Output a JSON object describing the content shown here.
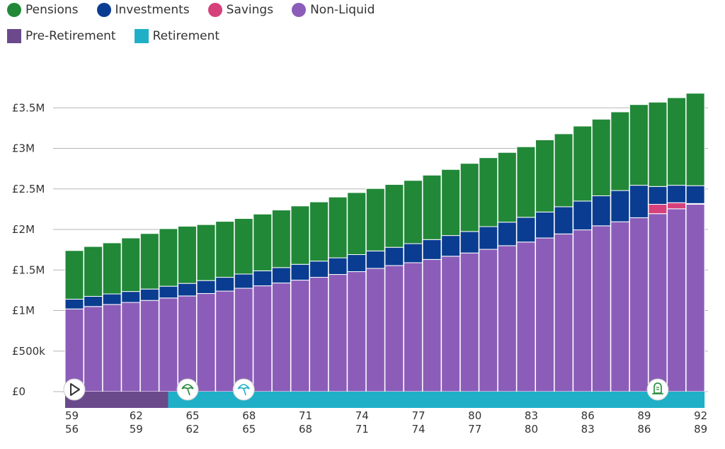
{
  "legend": {
    "assets": [
      {
        "label": "Pensions",
        "color": "#218838"
      },
      {
        "label": "Investments",
        "color": "#0a3d91"
      },
      {
        "label": "Savings",
        "color": "#d6417c"
      },
      {
        "label": "Non-Liquid",
        "color": "#8b5db8"
      }
    ],
    "phases": [
      {
        "label": "Pre-Retirement",
        "color": "#6b4a8c"
      },
      {
        "label": "Retirement",
        "color": "#1fb0c8"
      }
    ]
  },
  "chart_data": {
    "type": "bar",
    "stacked": true,
    "x_label_rows": [
      [
        "59",
        "62",
        "65",
        "68",
        "71",
        "74",
        "77",
        "80",
        "83",
        "86",
        "89",
        "92"
      ],
      [
        "56",
        "59",
        "62",
        "65",
        "68",
        "71",
        "74",
        "77",
        "80",
        "83",
        "86",
        "89"
      ]
    ],
    "ages_primary": [
      59,
      60,
      61,
      62,
      63,
      64,
      65,
      66,
      67,
      68,
      69,
      70,
      71,
      72,
      73,
      74,
      75,
      76,
      77,
      78,
      79,
      80,
      81,
      82,
      83,
      84,
      85,
      86,
      87,
      88,
      89,
      90,
      91,
      92
    ],
    "ylim": [
      0,
      3500000
    ],
    "y_ticks": [
      {
        "value": 0,
        "label": "£0"
      },
      {
        "value": 500000,
        "label": "£500k"
      },
      {
        "value": 1000000,
        "label": "£1M"
      },
      {
        "value": 1500000,
        "label": "£1.5M"
      },
      {
        "value": 2000000,
        "label": "£2M"
      },
      {
        "value": 2500000,
        "label": "£2.5M"
      },
      {
        "value": 3000000,
        "label": "£3M"
      },
      {
        "value": 3500000,
        "label": "£3.5M"
      }
    ],
    "grid": true,
    "series": [
      {
        "name": "Non-Liquid",
        "color": "#8b5db8",
        "values": [
          1020000,
          1050000,
          1075000,
          1100000,
          1125000,
          1155000,
          1180000,
          1210000,
          1240000,
          1275000,
          1305000,
          1340000,
          1375000,
          1410000,
          1445000,
          1480000,
          1520000,
          1555000,
          1590000,
          1630000,
          1670000,
          1710000,
          1755000,
          1800000,
          1845000,
          1895000,
          1945000,
          1995000,
          2045000,
          2095000,
          2145000,
          2195000,
          2255000,
          2310000
        ]
      },
      {
        "name": "Savings",
        "color": "#d6417c",
        "values": [
          0,
          0,
          0,
          0,
          0,
          0,
          0,
          0,
          0,
          0,
          0,
          0,
          0,
          0,
          0,
          0,
          0,
          0,
          0,
          0,
          0,
          0,
          0,
          0,
          0,
          0,
          0,
          0,
          0,
          0,
          0,
          115000,
          75000,
          10000
        ]
      },
      {
        "name": "Investments",
        "color": "#0a3d91",
        "values": [
          120000,
          125000,
          130000,
          135000,
          140000,
          145000,
          155000,
          160000,
          170000,
          175000,
          185000,
          190000,
          195000,
          200000,
          205000,
          210000,
          215000,
          225000,
          235000,
          245000,
          255000,
          265000,
          280000,
          290000,
          305000,
          320000,
          335000,
          355000,
          370000,
          385000,
          400000,
          220000,
          215000,
          220000
        ]
      },
      {
        "name": "Pensions",
        "color": "#218838",
        "values": [
          600000,
          615000,
          630000,
          660000,
          685000,
          710000,
          705000,
          690000,
          690000,
          685000,
          700000,
          710000,
          720000,
          730000,
          750000,
          765000,
          770000,
          775000,
          780000,
          795000,
          815000,
          840000,
          850000,
          860000,
          870000,
          890000,
          900000,
          925000,
          945000,
          970000,
          995000,
          1040000,
          1080000,
          1140000
        ]
      }
    ],
    "phases": {
      "pre_retirement": {
        "from_age": 59,
        "to_age": 64
      },
      "retirement": {
        "from_age": 65,
        "to_age": 92
      }
    },
    "markers": [
      {
        "age": 59,
        "icon": "play-icon",
        "color": "#333333"
      },
      {
        "age": 65,
        "icon": "umbrella-icon",
        "color": "#218838"
      },
      {
        "age": 68,
        "icon": "umbrella-icon",
        "color": "#1fb0c8"
      },
      {
        "age": 90,
        "icon": "gravestone-icon",
        "color": "#218838"
      }
    ]
  }
}
